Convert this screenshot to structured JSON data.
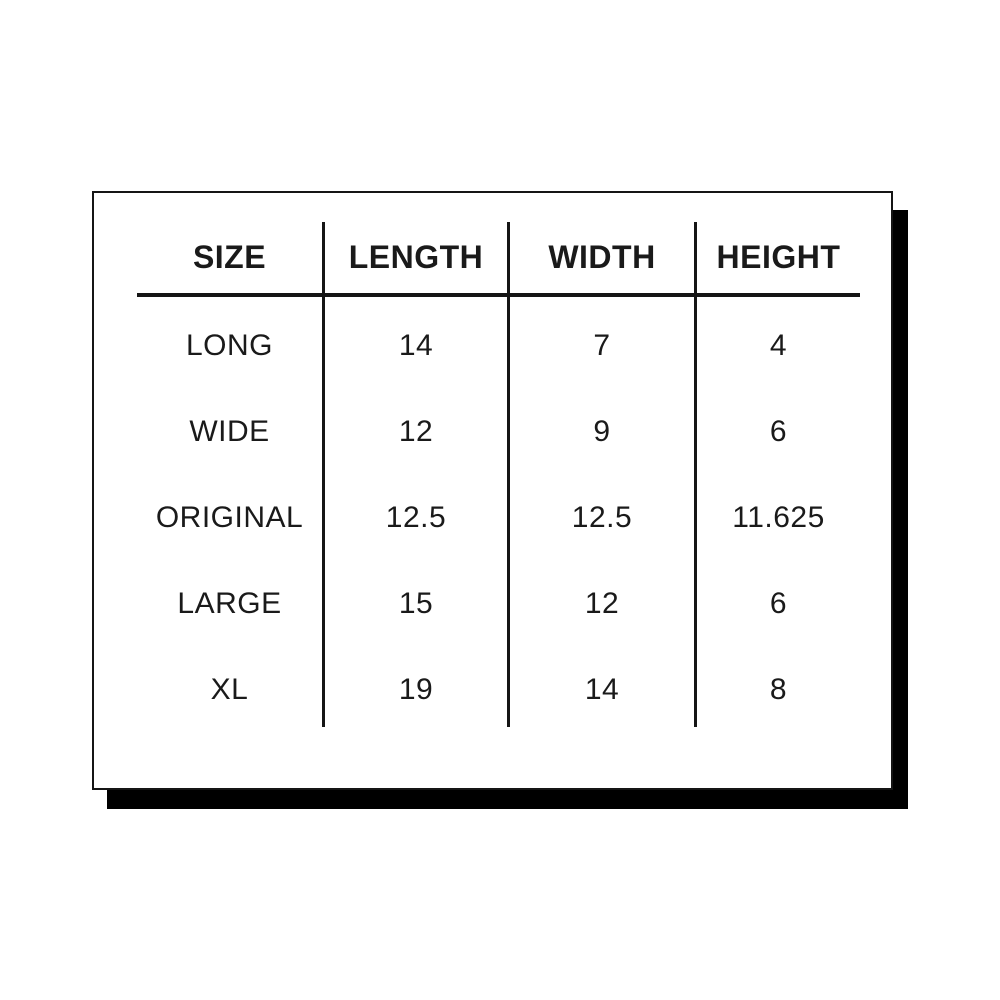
{
  "colors": {
    "ink": "#1a1a1a",
    "line": "#151515",
    "card_background": "#ffffff",
    "shadow": "#000000"
  },
  "table": {
    "columns": [
      "SIZE",
      "LENGTH",
      "WIDTH",
      "HEIGHT"
    ],
    "rows": [
      [
        "LONG",
        "14",
        "7",
        "4"
      ],
      [
        "WIDE",
        "12",
        "9",
        "6"
      ],
      [
        "ORIGINAL",
        "12.5",
        "12.5",
        "11.625"
      ],
      [
        "LARGE",
        "15",
        "12",
        "6"
      ],
      [
        "XL",
        "19",
        "14",
        "8"
      ]
    ]
  },
  "chart_data": {
    "type": "table",
    "title": "",
    "columns": [
      "SIZE",
      "LENGTH",
      "WIDTH",
      "HEIGHT"
    ],
    "rows": [
      {
        "size": "LONG",
        "length": 14,
        "width": 7,
        "height": 4
      },
      {
        "size": "WIDE",
        "length": 12,
        "width": 9,
        "height": 6
      },
      {
        "size": "ORIGINAL",
        "length": 12.5,
        "width": 12.5,
        "height": 11.625
      },
      {
        "size": "LARGE",
        "length": 15,
        "width": 12,
        "height": 6
      },
      {
        "size": "XL",
        "length": 19,
        "width": 14,
        "height": 8
      }
    ]
  }
}
